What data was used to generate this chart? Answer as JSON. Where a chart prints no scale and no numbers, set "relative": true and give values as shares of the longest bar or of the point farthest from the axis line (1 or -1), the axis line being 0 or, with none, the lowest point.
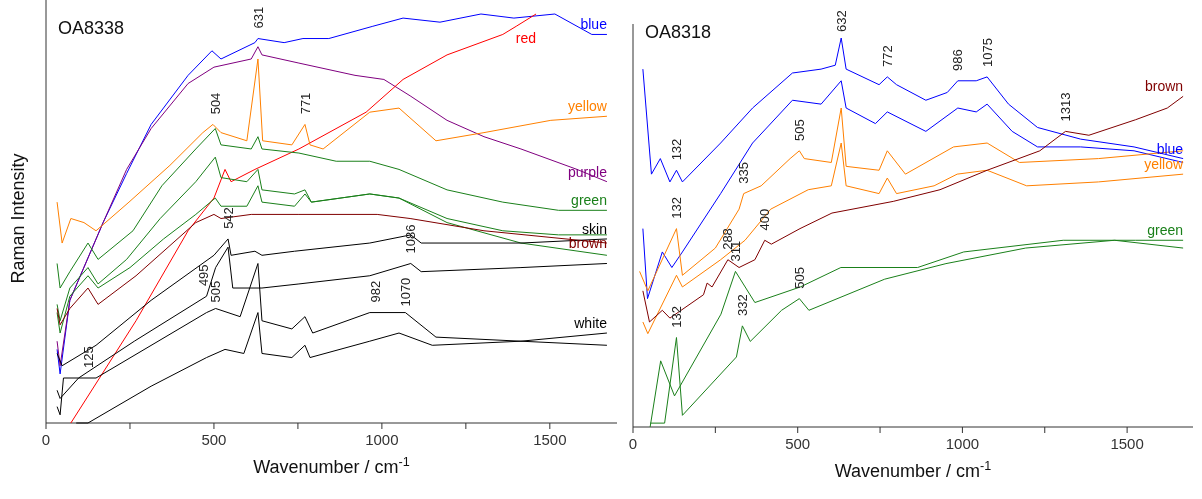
{
  "chart_data": [
    {
      "type": "line",
      "title": "OA8338",
      "xlabel": "Wavenumber / cm$^{-1}$",
      "ylabel": "Raman Intensity",
      "relative": true,
      "tick_labels": "x",
      "xlim": [
        0,
        1700
      ],
      "xticks": [
        0,
        {
          "value": 250,
          "label": null
        },
        500,
        {
          "value": 750,
          "label": null
        },
        1000,
        {
          "value": 1250,
          "label": null
        },
        1500
      ],
      "series": [
        {
          "name": "blue",
          "color": "#0000ff",
          "x": [
            33,
            42,
            71,
            170,
            240,
            313,
            423,
            494,
            521,
            622,
            631,
            709,
            765,
            842,
            973,
            1063,
            1173,
            1295,
            1393,
            1515,
            1625,
            1670
          ],
          "values": [
            0.18,
            0.12,
            0.3,
            0.49,
            0.61,
            0.73,
            0.85,
            0.91,
            0.89,
            0.93,
            0.94,
            0.93,
            0.94,
            0.94,
            0.97,
            0.99,
            0.98,
            1.0,
            0.99,
            1.0,
            0.95,
            0.95
          ]
        },
        {
          "name": "purple",
          "color": "#800080",
          "x": [
            33,
            42,
            71,
            170,
            240,
            313,
            423,
            500,
            611,
            631,
            643,
            753,
            920,
            1006,
            1084,
            1194,
            1304,
            1414,
            1581,
            1670
          ],
          "values": [
            0.2,
            0.14,
            0.3,
            0.49,
            0.62,
            0.72,
            0.83,
            0.87,
            0.89,
            0.92,
            0.9,
            0.88,
            0.85,
            0.84,
            0.8,
            0.74,
            0.7,
            0.67,
            0.62,
            0.59
          ]
        },
        {
          "name": "red",
          "color": "#ff0000",
          "x": [
            74,
            268,
            423,
            500,
            533,
            551,
            622,
            753,
            953,
            1063,
            1194,
            1360,
            1400,
            1459
          ],
          "values": [
            0,
            0.25,
            0.47,
            0.55,
            0.62,
            0.59,
            0.62,
            0.67,
            0.76,
            0.84,
            0.9,
            0.95,
            0.97,
            1.0
          ]
        },
        {
          "name": "yellow",
          "color": "#ff8000",
          "x": [
            33,
            48,
            74,
            113,
            149,
            247,
            369,
            467,
            497,
            521,
            598,
            631,
            645,
            732,
            771,
            786,
            825,
            964,
            1051,
            1161,
            1304,
            1503,
            1670
          ],
          "values": [
            0.54,
            0.44,
            0.5,
            0.49,
            0.47,
            0.54,
            0.63,
            0.71,
            0.73,
            0.71,
            0.69,
            0.89,
            0.69,
            0.68,
            0.73,
            0.68,
            0.67,
            0.76,
            0.77,
            0.69,
            0.71,
            0.74,
            0.75
          ]
        },
        {
          "name": "green",
          "color": "#1a801a",
          "x": [
            33,
            42,
            71,
            125,
            155,
            259,
            345,
            446,
            504,
            521,
            611,
            631,
            643,
            753,
            864,
            964,
            1051,
            1194,
            1360,
            1526,
            1670
          ],
          "values": [
            0.39,
            0.33,
            0.37,
            0.44,
            0.4,
            0.47,
            0.58,
            0.67,
            0.72,
            0.68,
            0.67,
            0.7,
            0.67,
            0.66,
            0.64,
            0.64,
            0.62,
            0.57,
            0.54,
            0.52,
            0.52
          ]
        },
        {
          "color": "#1a801a",
          "x": [
            33,
            42,
            71,
            125,
            155,
            240,
            340,
            446,
            504,
            521,
            598,
            631,
            643,
            740,
            771,
            790,
            964,
            1051,
            1194,
            1360,
            1526,
            1670
          ],
          "values": [
            0.29,
            0.25,
            0.33,
            0.38,
            0.34,
            0.4,
            0.5,
            0.59,
            0.65,
            0.6,
            0.59,
            0.62,
            0.57,
            0.56,
            0.57,
            0.54,
            0.56,
            0.55,
            0.5,
            0.47,
            0.46,
            0.46
          ]
        },
        {
          "color": "#1a801a",
          "x": [
            33,
            42,
            71,
            125,
            155,
            250,
            350,
            446,
            504,
            521,
            598,
            631,
            643,
            740,
            771,
            790,
            964,
            1051,
            1194,
            1414,
            1670
          ],
          "values": [
            0.27,
            0.22,
            0.31,
            0.36,
            0.33,
            0.38,
            0.45,
            0.51,
            0.55,
            0.53,
            0.53,
            0.58,
            0.54,
            0.53,
            0.56,
            0.54,
            0.56,
            0.55,
            0.49,
            0.44,
            0.41
          ]
        },
        {
          "name": "brown",
          "color": "#800000",
          "x": [
            33,
            42,
            71,
            125,
            155,
            268,
            446,
            500,
            521,
            611,
            753,
            986,
            1084,
            1304,
            1670
          ],
          "values": [
            0.28,
            0.24,
            0.28,
            0.33,
            0.29,
            0.36,
            0.49,
            0.51,
            0.5,
            0.51,
            0.51,
            0.51,
            0.5,
            0.47,
            0.44
          ]
        },
        {
          "name": "skin",
          "color": "#000000",
          "x": [
            33,
            48,
            149,
            313,
            500,
            542,
            551,
            622,
            643,
            740,
            964,
            1086,
            1117,
            1414,
            1670
          ],
          "values": [
            0.17,
            0.14,
            0.19,
            0.3,
            0.41,
            0.45,
            0.41,
            0.42,
            0.41,
            0.42,
            0.44,
            0.46,
            0.44,
            0.44,
            0.45
          ]
        },
        {
          "color": "#000000",
          "x": [
            33,
            42,
            97,
            263,
            478,
            505,
            542,
            556,
            643,
            753,
            964,
            1086,
            1117,
            1414,
            1670
          ],
          "values": [
            0.08,
            0.06,
            0.11,
            0.2,
            0.31,
            0.38,
            0.43,
            0.33,
            0.33,
            0.34,
            0.36,
            0.39,
            0.37,
            0.38,
            0.39
          ]
        },
        {
          "name": "white",
          "color": "#000000",
          "x": [
            33,
            42,
            52,
            149,
            478,
            505,
            578,
            631,
            643,
            732,
            771,
            794,
            964,
            1051,
            1070,
            1161,
            1414,
            1670
          ],
          "values": [
            0.04,
            0.02,
            0.11,
            0.11,
            0.27,
            0.28,
            0.26,
            0.39,
            0.25,
            0.23,
            0.26,
            0.22,
            0.27,
            0.27,
            0.27,
            0.21,
            0.2,
            0.22
          ]
        },
        {
          "color": "#000000",
          "x": [
            90,
            125,
            313,
            478,
            533,
            589,
            631,
            643,
            732,
            771,
            786,
            964,
            1051,
            1150,
            1414,
            1670
          ],
          "values": [
            0,
            0,
            0.09,
            0.16,
            0.18,
            0.17,
            0.27,
            0.17,
            0.16,
            0.19,
            0.16,
            0.2,
            0.22,
            0.19,
            0.2,
            0.19
          ]
        }
      ],
      "annotations": [
        {
          "text": "631",
          "x": 631,
          "y": 0.95
        },
        {
          "text": "504",
          "x": 504,
          "y": 0.74
        },
        {
          "text": "771",
          "x": 771,
          "y": 0.74
        },
        {
          "text": "542",
          "x": 542,
          "y": 0.46
        },
        {
          "text": "1086",
          "x": 1086,
          "y": 0.4
        },
        {
          "text": "495",
          "x": 470,
          "y": 0.32
        },
        {
          "text": "505",
          "x": 505,
          "y": 0.28
        },
        {
          "text": "982",
          "x": 982,
          "y": 0.28
        },
        {
          "text": "1070",
          "x": 1070,
          "y": 0.27
        },
        {
          "text": "125",
          "x": 125,
          "y": 0.12
        }
      ]
    },
    {
      "type": "line",
      "title": "OA8318",
      "xlabel": "Wavenumber / cm$^{-1}$",
      "relative": true,
      "tick_labels": "x",
      "xlim": [
        0,
        1700
      ],
      "xticks": [
        0,
        {
          "value": 250,
          "label": null
        },
        500,
        {
          "value": 750,
          "label": null
        },
        1000,
        {
          "value": 1250,
          "label": null
        },
        1500
      ],
      "series": [
        {
          "name": "blue",
          "color": "#0000ff",
          "x": [
            30,
            56,
            83,
            112,
            132,
            150,
            266,
            363,
            484,
            571,
            614,
            632,
            647,
            747,
            772,
            800,
            889,
            954,
            986,
            1042,
            1075,
            1140,
            1228,
            1359,
            1521,
            1670
          ],
          "values": [
            0.92,
            0.65,
            0.69,
            0.63,
            0.66,
            0.63,
            0.73,
            0.82,
            0.91,
            0.92,
            0.93,
            1.0,
            0.92,
            0.88,
            0.9,
            0.88,
            0.84,
            0.86,
            0.89,
            0.89,
            0.9,
            0.83,
            0.77,
            0.74,
            0.72,
            0.69
          ]
        },
        {
          "color": "#0000ff",
          "x": [
            30,
            44,
            89,
            118,
            150,
            266,
            363,
            484,
            571,
            632,
            647,
            736,
            772,
            889,
            986,
            1042,
            1075,
            1151,
            1228,
            1359,
            1521,
            1670
          ],
          "values": [
            0.51,
            0.33,
            0.45,
            0.41,
            0.45,
            0.6,
            0.73,
            0.84,
            0.83,
            0.89,
            0.82,
            0.78,
            0.81,
            0.76,
            0.82,
            0.81,
            0.83,
            0.76,
            0.72,
            0.72,
            0.71,
            0.68
          ]
        },
        {
          "color": "#ff8000",
          "x": [
            20,
            45,
            132,
            150,
            250,
            322,
            336,
            389,
            477,
            505,
            520,
            602,
            632,
            647,
            747,
            772,
            827,
            973,
            1075,
            1173,
            1413,
            1670
          ],
          "values": [
            0.4,
            0.35,
            0.51,
            0.39,
            0.46,
            0.56,
            0.6,
            0.62,
            0.69,
            0.71,
            0.69,
            0.68,
            0.82,
            0.67,
            0.66,
            0.71,
            0.65,
            0.72,
            0.73,
            0.68,
            0.69,
            0.71
          ]
        },
        {
          "name": "yellow",
          "color": "#ff8000",
          "x": [
            30,
            45,
            132,
            150,
            266,
            340,
            418,
            532,
            602,
            632,
            647,
            747,
            772,
            800,
            914,
            984,
            1075,
            1195,
            1413,
            1670
          ],
          "values": [
            0.27,
            0.24,
            0.39,
            0.36,
            0.43,
            0.48,
            0.56,
            0.61,
            0.62,
            0.73,
            0.62,
            0.6,
            0.64,
            0.6,
            0.62,
            0.65,
            0.66,
            0.62,
            0.63,
            0.65
          ]
        },
        {
          "name": "brown",
          "color": "#800000",
          "x": [
            30,
            50,
            89,
            112,
            214,
            225,
            240,
            288,
            322,
            370,
            400,
            420,
            507,
            604,
            790,
            932,
            1075,
            1235,
            1313,
            1384,
            1526,
            1622,
            1670
          ],
          "values": [
            0.35,
            0.27,
            0.3,
            0.28,
            0.34,
            0.37,
            0.36,
            0.43,
            0.41,
            0.43,
            0.48,
            0.47,
            0.51,
            0.55,
            0.58,
            0.61,
            0.66,
            0.71,
            0.76,
            0.75,
            0.79,
            0.82,
            0.85
          ]
        },
        {
          "name": "green",
          "color": "#1a801a",
          "x": [
            52,
            84,
            126,
            267,
            311,
            370,
            508,
            631,
            864,
            1004,
            1306,
            1526,
            1670
          ],
          "values": [
            0,
            0.17,
            0.08,
            0.29,
            0.4,
            0.32,
            0.36,
            0.41,
            0.41,
            0.45,
            0.48,
            0.48,
            0.48
          ]
        },
        {
          "color": "#1a801a",
          "x": [
            52,
            96,
            132,
            150,
            314,
            332,
            356,
            451,
            505,
            534,
            764,
            950,
            1192,
            1462,
            1670
          ],
          "values": [
            0.01,
            0.01,
            0.23,
            0.03,
            0.18,
            0.26,
            0.22,
            0.3,
            0.33,
            0.3,
            0.38,
            0.42,
            0.46,
            0.48,
            0.46
          ]
        }
      ],
      "annotations": [
        {
          "text": "632",
          "x": 632,
          "y": 1.0
        },
        {
          "text": "772",
          "x": 772,
          "y": 0.91
        },
        {
          "text": "986",
          "x": 986,
          "y": 0.9
        },
        {
          "text": "1075",
          "x": 1075,
          "y": 0.91
        },
        {
          "text": "1313",
          "x": 1313,
          "y": 0.77
        },
        {
          "text": "132",
          "x": 132,
          "y": 0.67
        },
        {
          "text": "505",
          "x": 505,
          "y": 0.72
        },
        {
          "text": "335",
          "x": 335,
          "y": 0.61
        },
        {
          "text": "132",
          "x": 132,
          "y": 0.52
        },
        {
          "text": "288",
          "x": 288,
          "y": 0.44
        },
        {
          "text": "400",
          "x": 400,
          "y": 0.49
        },
        {
          "text": "311",
          "x": 311,
          "y": 0.41
        },
        {
          "text": "505",
          "x": 505,
          "y": 0.34
        },
        {
          "text": "132",
          "x": 132,
          "y": 0.24
        },
        {
          "text": "332",
          "x": 332,
          "y": 0.27
        }
      ]
    }
  ]
}
